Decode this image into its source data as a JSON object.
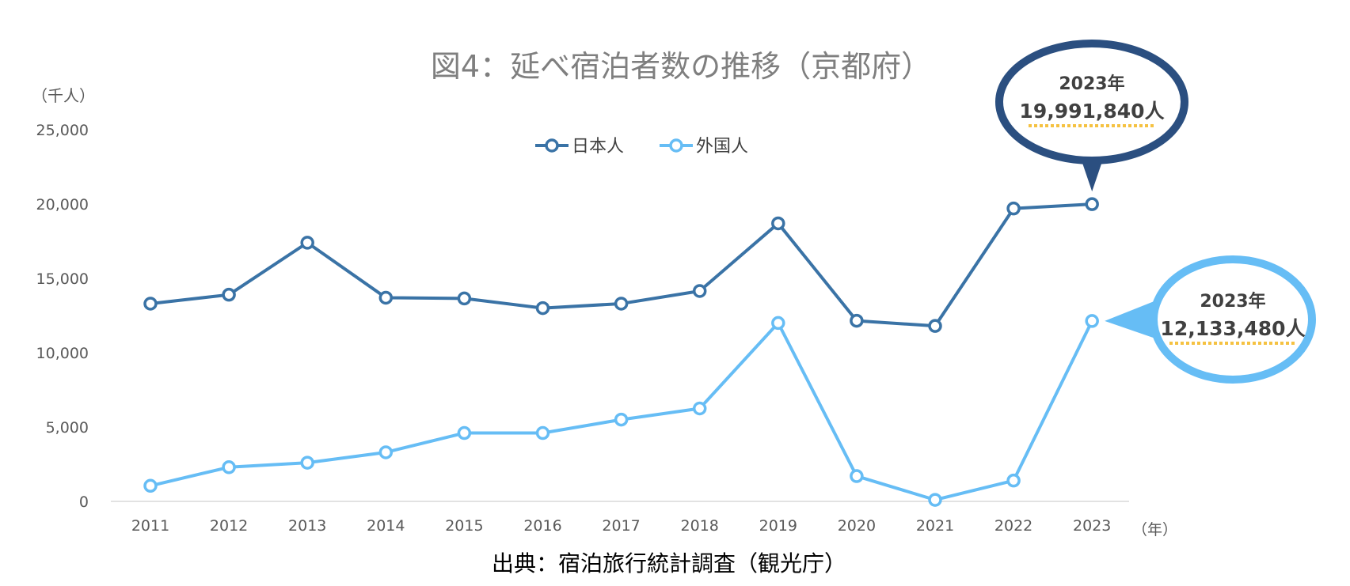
{
  "chart_data": {
    "type": "line",
    "title": "図4：延べ宿泊者数の推移（京都府）",
    "y_unit_label": "（千人）",
    "x_unit_label": "（年）",
    "source": "出典：宿泊旅行統計調査（観光庁）",
    "categories": [
      "2011",
      "2012",
      "2013",
      "2014",
      "2015",
      "2016",
      "2017",
      "2018",
      "2019",
      "2020",
      "2021",
      "2022",
      "2023"
    ],
    "ylim": [
      0,
      25000
    ],
    "yticks": [
      0,
      5000,
      10000,
      15000,
      20000,
      25000
    ],
    "ytick_labels": [
      "0",
      "5,000",
      "10,000",
      "15,000",
      "20,000",
      "25,000"
    ],
    "grid": false,
    "legend_position": "top-center",
    "series": [
      {
        "name": "日本人",
        "color": "#3a73a6",
        "values": [
          13300,
          13900,
          17400,
          13700,
          13650,
          13000,
          13300,
          14150,
          18700,
          12150,
          11800,
          19700,
          19992
        ]
      },
      {
        "name": "外国人",
        "color": "#66bdf5",
        "values": [
          1050,
          2300,
          2600,
          3300,
          4600,
          4600,
          5500,
          6250,
          12000,
          1700,
          100,
          1400,
          12133
        ]
      }
    ],
    "annotations": [
      {
        "series": 0,
        "year_label": "2023年",
        "value_label": "19,991,840人",
        "color": "#2b4f80",
        "text_color": "#404040",
        "accent": "#f5c242"
      },
      {
        "series": 1,
        "year_label": "2023年",
        "value_label": "12,133,480人",
        "color": "#66bdf5",
        "text_color": "#404040",
        "accent": "#f5c242"
      }
    ]
  }
}
